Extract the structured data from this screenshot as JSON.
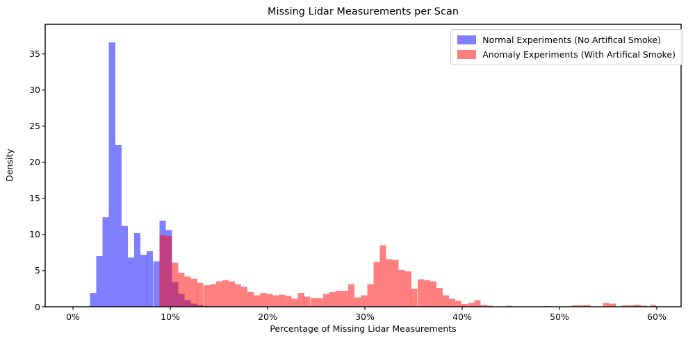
{
  "title": "Missing Lidar Measurements per Scan",
  "axes": {
    "xlabel": "Percentage of Missing Lidar Measurements",
    "ylabel": "Density",
    "x_tick_labels": [
      "0%",
      "10%",
      "20%",
      "30%",
      "40%",
      "50%",
      "60%"
    ],
    "x_tick_values": [
      0,
      10,
      20,
      30,
      40,
      50,
      60
    ],
    "y_tick_values": [
      0,
      5,
      10,
      15,
      20,
      25,
      30,
      35
    ]
  },
  "legend": {
    "items": [
      {
        "label": "Normal Experiments (No Artifical Smoke)",
        "color": "rgba(0,0,255,0.5)"
      },
      {
        "label": "Anomaly Experiments (With Artifical Smoke)",
        "color": "rgba(255,0,0,0.5)"
      }
    ]
  },
  "chart_data": {
    "type": "bar",
    "subtype": "overlapping-histogram",
    "title": "Missing Lidar Measurements per Scan",
    "xlabel": "Percentage of Missing Lidar Measurements",
    "ylabel": "Density",
    "xlim_pct": [
      -2.86,
      62.5
    ],
    "ylim": [
      0,
      39.1
    ],
    "grid": false,
    "legend_position": "upper right",
    "bin_width_pct": 0.648,
    "series": [
      {
        "name": "Normal Experiments (No Artifical Smoke)",
        "color": "rgba(0,0,255,0.5)",
        "bins": [
          [
            1.75,
            1.9
          ],
          [
            2.4,
            7.0
          ],
          [
            3.04,
            12.4
          ],
          [
            3.69,
            36.6
          ],
          [
            4.34,
            22.4
          ],
          [
            4.99,
            11.2
          ],
          [
            5.64,
            6.8
          ],
          [
            6.29,
            10.2
          ],
          [
            6.94,
            7.2
          ],
          [
            7.58,
            7.7
          ],
          [
            8.23,
            6.3
          ],
          [
            8.88,
            11.9
          ],
          [
            9.52,
            10.6
          ],
          [
            10.17,
            3.4
          ],
          [
            10.82,
            1.8
          ],
          [
            11.47,
            0.9
          ],
          [
            12.12,
            0.45
          ],
          [
            12.76,
            0.25
          ],
          [
            13.41,
            0.1
          ]
        ]
      },
      {
        "name": "Anomaly Experiments (With Artifical Smoke)",
        "color": "rgba(255,0,0,0.5)",
        "bins": [
          [
            8.88,
            9.9
          ],
          [
            9.52,
            9.8
          ],
          [
            10.17,
            6.1
          ],
          [
            10.82,
            4.7
          ],
          [
            11.47,
            4.2
          ],
          [
            12.12,
            3.9
          ],
          [
            12.76,
            3.3
          ],
          [
            13.41,
            3.0
          ],
          [
            14.06,
            3.1
          ],
          [
            14.7,
            3.5
          ],
          [
            15.35,
            3.7
          ],
          [
            16.0,
            3.5
          ],
          [
            16.65,
            3.1
          ],
          [
            17.29,
            2.8
          ],
          [
            17.94,
            2.0
          ],
          [
            18.59,
            1.6
          ],
          [
            19.23,
            1.9
          ],
          [
            19.88,
            1.8
          ],
          [
            20.53,
            1.6
          ],
          [
            21.18,
            1.7
          ],
          [
            21.82,
            1.5
          ],
          [
            22.47,
            1.1
          ],
          [
            23.12,
            1.9
          ],
          [
            23.76,
            1.4
          ],
          [
            24.41,
            1.2
          ],
          [
            25.06,
            1.2
          ],
          [
            25.71,
            1.8
          ],
          [
            26.35,
            2.0
          ],
          [
            27.0,
            2.2
          ],
          [
            27.65,
            2.2
          ],
          [
            28.29,
            3.1
          ],
          [
            28.94,
            1.3
          ],
          [
            29.59,
            1.6
          ],
          [
            30.24,
            3.1
          ],
          [
            30.88,
            6.2
          ],
          [
            31.53,
            8.5
          ],
          [
            32.18,
            6.6
          ],
          [
            32.82,
            6.5
          ],
          [
            33.47,
            5.1
          ],
          [
            34.12,
            4.9
          ],
          [
            34.76,
            2.5
          ],
          [
            35.41,
            3.8
          ],
          [
            36.06,
            3.7
          ],
          [
            36.71,
            3.5
          ],
          [
            37.35,
            2.6
          ],
          [
            38.0,
            1.6
          ],
          [
            38.65,
            1.1
          ],
          [
            39.29,
            0.8
          ],
          [
            39.94,
            0.4
          ],
          [
            40.59,
            0.55
          ],
          [
            41.24,
            0.9
          ],
          [
            41.88,
            0.25
          ],
          [
            42.53,
            0.15
          ],
          [
            43.18,
            0.05
          ],
          [
            44.47,
            0.15
          ],
          [
            48.35,
            0.1
          ],
          [
            51.24,
            0.2
          ],
          [
            51.88,
            0.2
          ],
          [
            52.53,
            0.25
          ],
          [
            54.47,
            0.55
          ],
          [
            55.12,
            0.45
          ],
          [
            56.41,
            0.2
          ],
          [
            57.06,
            0.2
          ],
          [
            57.71,
            0.3
          ],
          [
            58.35,
            0.15
          ],
          [
            59.29,
            0.25
          ]
        ]
      }
    ]
  }
}
